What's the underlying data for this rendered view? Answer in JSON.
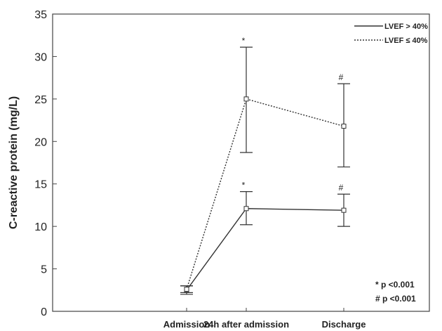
{
  "chart_data": {
    "type": "line",
    "categories": [
      "Admission",
      "24h after admission",
      "Discharge"
    ],
    "ylabel": "C-reactive protein (mg/L)",
    "ylim": [
      0,
      35
    ],
    "yticks": [
      0,
      5,
      10,
      15,
      20,
      25,
      30,
      35
    ],
    "legend_position": "top-right",
    "series": [
      {
        "name": "LVEF > 40%",
        "style": "solid",
        "values": [
          2.5,
          12.1,
          11.9
        ],
        "err_low": [
          2.0,
          10.2,
          10.0
        ],
        "err_high": [
          3.0,
          14.1,
          13.8
        ],
        "markers": [
          "",
          "*",
          "#"
        ]
      },
      {
        "name": "LVEF ≤ 40%",
        "style": "dotted",
        "values": [
          2.6,
          25.0,
          21.8
        ],
        "err_low": [
          2.2,
          18.7,
          17.0
        ],
        "err_high": [
          3.0,
          31.1,
          26.8
        ],
        "markers": [
          "",
          "*",
          "#"
        ]
      }
    ],
    "notes": [
      "* p <0.001",
      "# p <0.001"
    ]
  },
  "colors": {
    "line": "#333333",
    "axis": "#444444",
    "marker_fill": "#ffffff"
  }
}
